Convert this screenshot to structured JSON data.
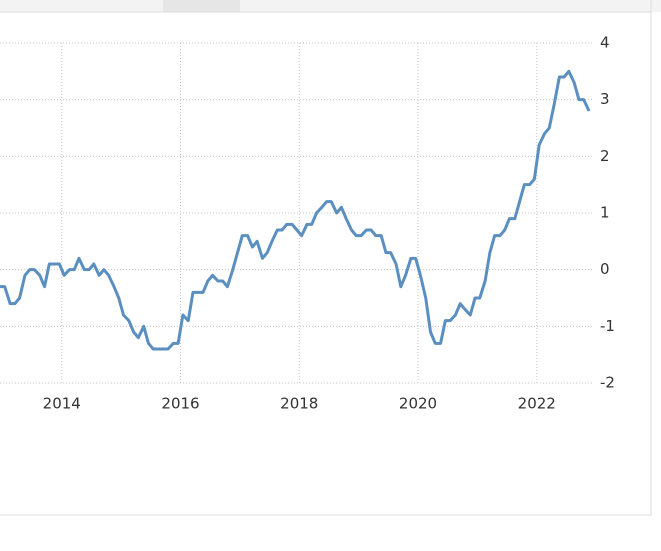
{
  "chart_data": {
    "type": "line",
    "x": [
      2012.96,
      2013.04,
      2013.13,
      2013.21,
      2013.29,
      2013.38,
      2013.46,
      2013.54,
      2013.63,
      2013.71,
      2013.79,
      2013.88,
      2013.96,
      2014.04,
      2014.13,
      2014.21,
      2014.29,
      2014.38,
      2014.46,
      2014.54,
      2014.63,
      2014.71,
      2014.79,
      2014.88,
      2014.96,
      2015.04,
      2015.13,
      2015.21,
      2015.29,
      2015.38,
      2015.46,
      2015.54,
      2015.63,
      2015.71,
      2015.79,
      2015.88,
      2015.96,
      2016.04,
      2016.13,
      2016.21,
      2016.29,
      2016.38,
      2016.46,
      2016.54,
      2016.63,
      2016.71,
      2016.79,
      2016.88,
      2016.96,
      2017.04,
      2017.13,
      2017.21,
      2017.29,
      2017.38,
      2017.46,
      2017.54,
      2017.63,
      2017.71,
      2017.79,
      2017.88,
      2017.96,
      2018.04,
      2018.13,
      2018.21,
      2018.29,
      2018.38,
      2018.46,
      2018.54,
      2018.63,
      2018.71,
      2018.79,
      2018.88,
      2018.96,
      2019.04,
      2019.13,
      2019.21,
      2019.29,
      2019.38,
      2019.46,
      2019.54,
      2019.63,
      2019.71,
      2019.79,
      2019.88,
      2019.96,
      2020.04,
      2020.13,
      2020.21,
      2020.29,
      2020.38,
      2020.46,
      2020.54,
      2020.63,
      2020.71,
      2020.79,
      2020.88,
      2020.96,
      2021.04,
      2021.13,
      2021.21,
      2021.29,
      2021.38,
      2021.46,
      2021.54,
      2021.63,
      2021.71,
      2021.79,
      2021.88,
      2021.96,
      2022.04,
      2022.13,
      2022.21,
      2022.29,
      2022.38,
      2022.46,
      2022.54,
      2022.63,
      2022.71,
      2022.79,
      2022.88
    ],
    "series": [
      {
        "color": "#5a8fbf",
        "values": [
          -0.3,
          -0.3,
          -0.6,
          -0.6,
          -0.5,
          -0.1,
          0,
          0,
          -0.1,
          -0.3,
          0.1,
          0.1,
          0.1,
          -0.1,
          0,
          0,
          0.2,
          0,
          0,
          0.1,
          -0.1,
          0,
          -0.1,
          -0.3,
          -0.5,
          -0.8,
          -0.9,
          -1.1,
          -1.2,
          -1.0,
          -1.3,
          -1.4,
          -1.4,
          -1.4,
          -1.4,
          -1.3,
          -1.3,
          -0.8,
          -0.9,
          -0.4,
          -0.4,
          -0.4,
          -0.2,
          -0.1,
          -0.2,
          -0.2,
          -0.3,
          0,
          0.3,
          0.6,
          0.6,
          0.4,
          0.5,
          0.2,
          0.3,
          0.5,
          0.7,
          0.7,
          0.8,
          0.8,
          0.7,
          0.6,
          0.8,
          0.8,
          1.0,
          1.1,
          1.2,
          1.2,
          1.0,
          1.1,
          0.9,
          0.7,
          0.6,
          0.6,
          0.7,
          0.7,
          0.6,
          0.6,
          0.3,
          0.3,
          0.1,
          -0.3,
          -0.1,
          0.2,
          0.2,
          -0.1,
          -0.5,
          -1.1,
          -1.3,
          -1.3,
          -0.9,
          -0.9,
          -0.8,
          -0.6,
          -0.7,
          -0.8,
          -0.5,
          -0.5,
          -0.2,
          0.3,
          0.6,
          0.6,
          0.7,
          0.9,
          0.9,
          1.2,
          1.5,
          1.5,
          1.6,
          2.2,
          2.4,
          2.5,
          2.9,
          3.4,
          3.4,
          3.5,
          3.3,
          3.0,
          3.0,
          2.8
        ]
      }
    ],
    "xlim": [
      2012.96,
      2022.93
    ],
    "xticks": [
      2014,
      2016,
      2018,
      2020,
      2022
    ],
    "ylim": [
      -2,
      4
    ],
    "yticks": [
      -2,
      -1,
      0,
      1,
      2,
      3,
      4
    ],
    "grid": true
  }
}
